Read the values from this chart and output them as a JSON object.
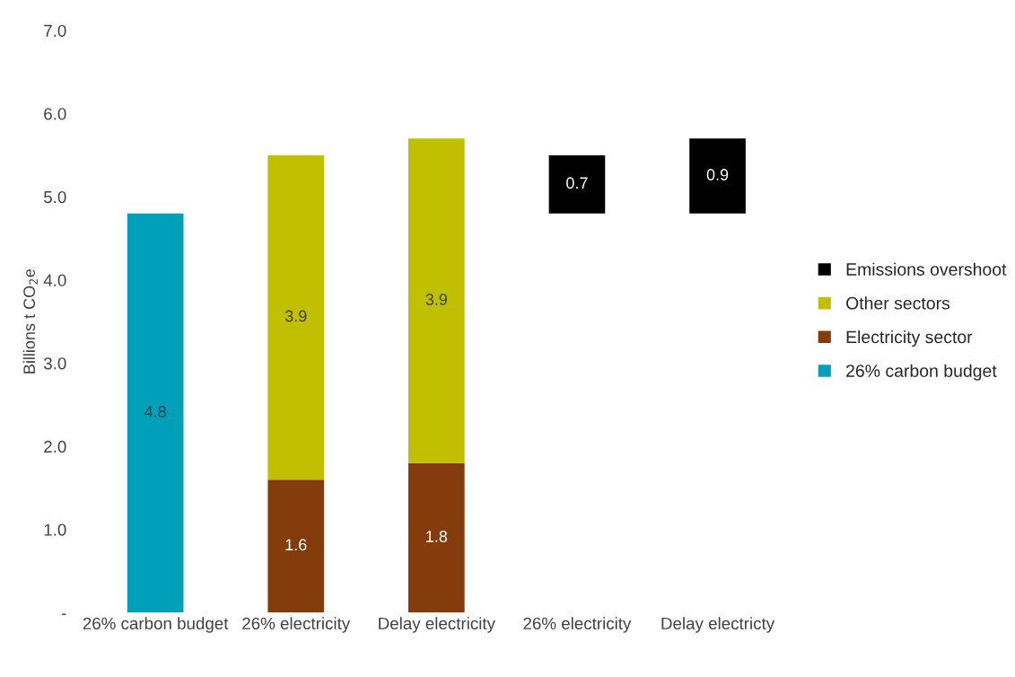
{
  "chart_data": {
    "type": "bar",
    "stacked": true,
    "ylabel": "Billions t CO$_{2}$e",
    "categories": [
      "26% carbon budget",
      "26% electricity",
      "Delay electricity",
      "26% electricity",
      "Delay electricty"
    ],
    "series": [
      {
        "name": "26% carbon budget",
        "color": "#00a0bb",
        "values": [
          4.8,
          null,
          null,
          null,
          null
        ]
      },
      {
        "name": "Electricity sector",
        "color": "#843c0c",
        "values": [
          null,
          1.6,
          1.8,
          null,
          null
        ]
      },
      {
        "name": "Other sectors",
        "color": "#c0bf00",
        "values": [
          null,
          3.9,
          3.9,
          null,
          null
        ]
      },
      {
        "name": "Emissions overshoot",
        "color": "#000000",
        "values": [
          null,
          null,
          null,
          0.7,
          0.9
        ],
        "base": [
          null,
          null,
          null,
          4.8,
          4.8
        ]
      }
    ],
    "data_labels": true,
    "ylim": [
      0,
      7
    ],
    "yticks": [
      {
        "value": 0,
        "label": "-"
      },
      {
        "value": 1,
        "label": "1.0"
      },
      {
        "value": 2,
        "label": "2.0"
      },
      {
        "value": 3,
        "label": "3.0"
      },
      {
        "value": 4,
        "label": "4.0"
      },
      {
        "value": 5,
        "label": "5.0"
      },
      {
        "value": 6,
        "label": "6.0"
      },
      {
        "value": 7,
        "label": "7.0"
      }
    ],
    "grid": false,
    "legend": "right"
  }
}
